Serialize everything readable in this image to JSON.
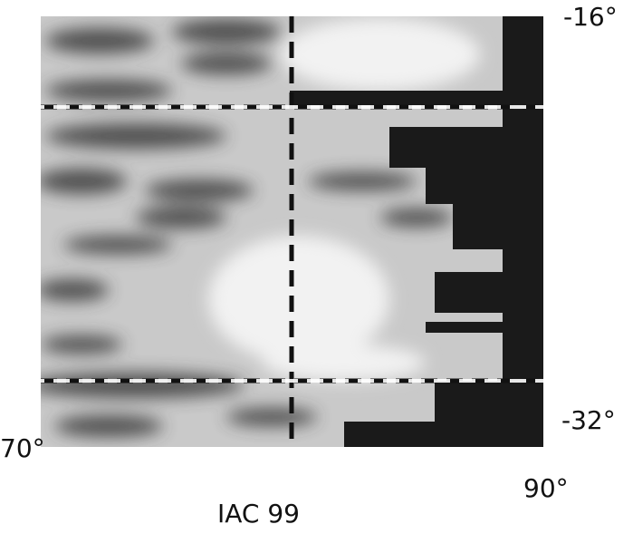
{
  "lat_top": "-16°",
  "lat_bottom": "-32°",
  "lon_left": "70°",
  "lon_right": "90°",
  "caption": "IAC 99"
}
